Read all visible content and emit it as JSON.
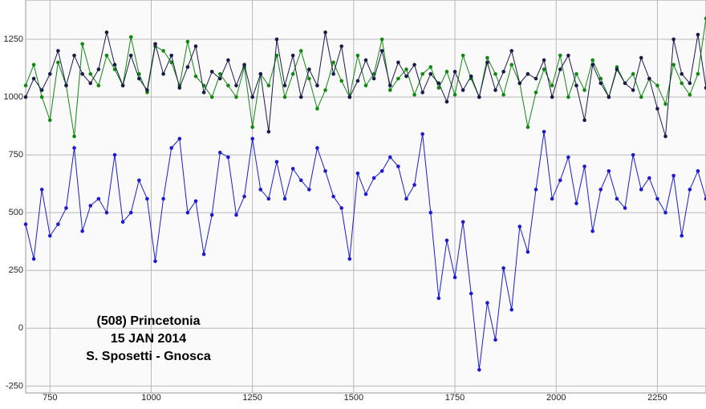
{
  "chart_data": {
    "type": "line",
    "annotations": [
      "(508) Princetonia",
      "15 JAN 2014",
      "S. Sposetti - Gnosca"
    ],
    "x": [
      690,
      710,
      730,
      750,
      770,
      790,
      810,
      830,
      850,
      870,
      890,
      910,
      930,
      950,
      970,
      990,
      1010,
      1030,
      1050,
      1070,
      1090,
      1110,
      1130,
      1150,
      1170,
      1190,
      1210,
      1230,
      1250,
      1270,
      1290,
      1310,
      1330,
      1350,
      1370,
      1390,
      1410,
      1430,
      1450,
      1470,
      1490,
      1510,
      1530,
      1550,
      1570,
      1590,
      1610,
      1630,
      1650,
      1670,
      1690,
      1710,
      1730,
      1750,
      1770,
      1790,
      1810,
      1830,
      1850,
      1870,
      1890,
      1910,
      1930,
      1950,
      1970,
      1990,
      2010,
      2030,
      2050,
      2070,
      2090,
      2110,
      2130,
      2150,
      2170,
      2190,
      2210,
      2230,
      2250,
      2270,
      2290,
      2310,
      2330,
      2350,
      2370
    ],
    "series": [
      {
        "color": "#1c1ccc",
        "values": [
          450,
          300,
          600,
          400,
          450,
          520,
          780,
          420,
          530,
          560,
          500,
          750,
          460,
          500,
          640,
          560,
          290,
          560,
          780,
          820,
          500,
          550,
          320,
          490,
          760,
          740,
          490,
          570,
          820,
          600,
          560,
          720,
          560,
          690,
          640,
          600,
          780,
          680,
          570,
          520,
          300,
          670,
          580,
          650,
          680,
          740,
          700,
          560,
          620,
          840,
          500,
          130,
          380,
          220,
          460,
          150,
          -180,
          110,
          -50,
          260,
          80,
          440,
          330,
          600,
          850,
          560,
          640,
          740,
          540,
          700,
          420,
          600,
          680,
          560,
          520,
          750,
          600,
          650,
          560,
          500,
          660,
          400,
          600,
          680,
          560
        ]
      },
      {
        "color": "#118811",
        "values": [
          1050,
          1140,
          1000,
          900,
          1150,
          1050,
          830,
          1230,
          1100,
          1050,
          1180,
          1120,
          1050,
          1260,
          1100,
          1020,
          1220,
          1200,
          1150,
          1050,
          1240,
          1090,
          1050,
          1000,
          1100,
          1050,
          1000,
          1130,
          870,
          1100,
          1050,
          1180,
          1000,
          1100,
          1200,
          1080,
          950,
          1030,
          1150,
          1070,
          1000,
          1180,
          1050,
          1100,
          1250,
          1030,
          1080,
          1120,
          1010,
          1100,
          1130,
          1040,
          1110,
          1010,
          1180,
          1080,
          1000,
          1170,
          1100,
          1010,
          1140,
          1060,
          870,
          1020,
          1120,
          1050,
          1180,
          1000,
          1100,
          1030,
          1160,
          1080,
          1000,
          1130,
          1060,
          1100,
          1000,
          1080,
          1050,
          970,
          1140,
          1060,
          1010,
          1100,
          1340
        ]
      },
      {
        "color": "#1a1a4a",
        "values": [
          1000,
          1080,
          1030,
          1100,
          1200,
          1050,
          1180,
          1100,
          1060,
          1120,
          1280,
          1140,
          1050,
          1180,
          1080,
          1030,
          1230,
          1100,
          1180,
          1040,
          1130,
          1220,
          1020,
          1110,
          1080,
          1160,
          1050,
          1140,
          1000,
          1100,
          850,
          1250,
          1050,
          1180,
          1000,
          1120,
          1050,
          1280,
          1100,
          1220,
          1000,
          1070,
          1160,
          1080,
          1200,
          1050,
          1150,
          1090,
          1140,
          1020,
          1100,
          1060,
          980,
          1110,
          1030,
          1090,
          1000,
          1150,
          1030,
          1110,
          1200,
          1060,
          1100,
          1080,
          1160,
          1000,
          1120,
          1180,
          1050,
          900,
          1140,
          1060,
          1000,
          1120,
          1060,
          1030,
          1170,
          1080,
          950,
          830,
          1250,
          1100,
          1060,
          1270,
          1040
        ]
      }
    ],
    "xlim": [
      690,
      2370
    ],
    "xticks": [
      750,
      1000,
      1250,
      1500,
      1750,
      2000,
      2250
    ],
    "ylim": [
      -280,
      1420
    ],
    "yticks": [
      -250,
      0,
      250,
      500,
      750,
      1000,
      1250
    ],
    "grid": true
  }
}
